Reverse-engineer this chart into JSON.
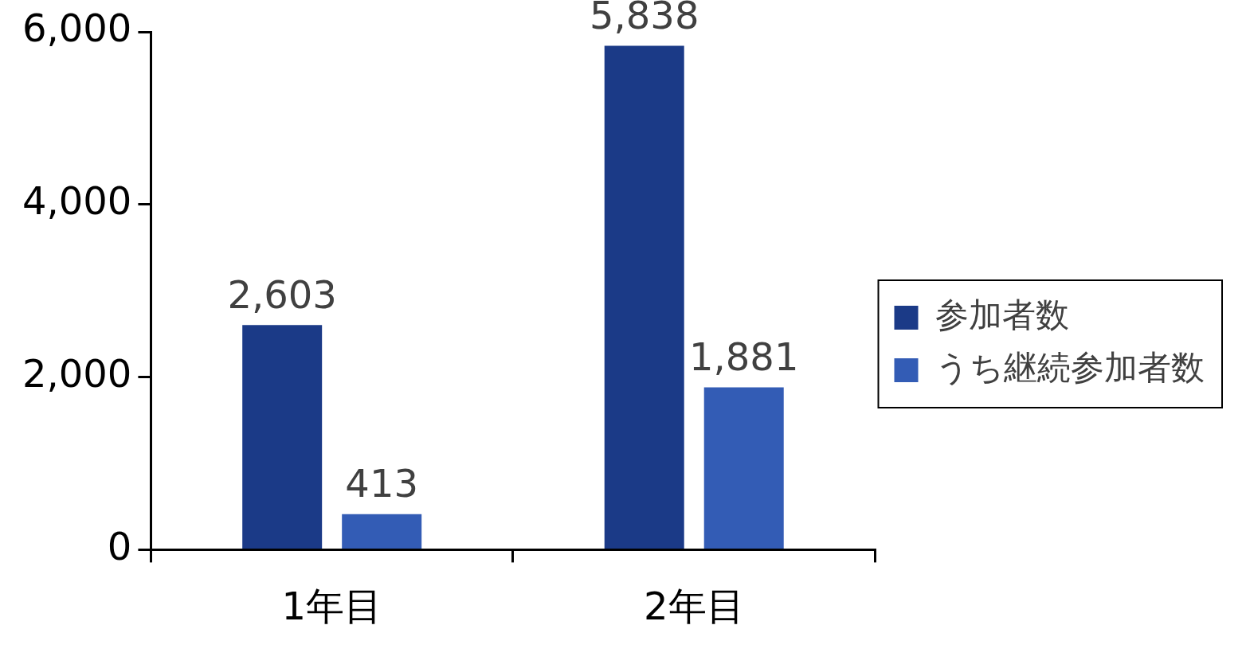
{
  "chart_data": {
    "type": "bar",
    "categories": [
      "1年目",
      "2年目"
    ],
    "series": [
      {
        "name": "参加者数",
        "color": "#1b3a87",
        "values": [
          2603,
          5838
        ],
        "value_labels": [
          "2,603",
          "5,838"
        ]
      },
      {
        "name": "うち継続参加者数",
        "color": "#335cb5",
        "values": [
          413,
          1881
        ],
        "value_labels": [
          "413",
          "1,881"
        ]
      }
    ],
    "ylim": [
      0,
      6000
    ],
    "yticks": [
      0,
      {
        "value": 2000,
        "label": "2,000"
      },
      {
        "value": 4000,
        "label": "4,000"
      },
      {
        "value": 6000,
        "label": "6,000"
      }
    ],
    "grid": false,
    "legend": "right"
  }
}
